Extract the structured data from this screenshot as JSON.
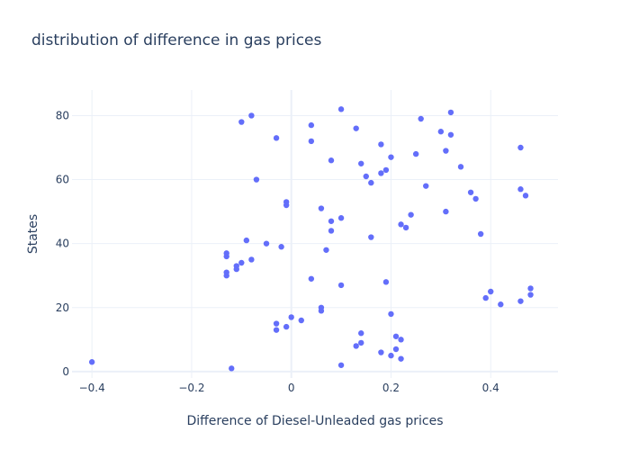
{
  "chart_data": {
    "type": "scatter",
    "title": "distribution of difference in gas prices",
    "xlabel": "Difference of Diesel-Unleaded gas prices",
    "ylabel": "States",
    "xlim": [
      -0.44,
      0.535
    ],
    "ylim": [
      -2,
      88
    ],
    "xticks": [
      -0.4,
      -0.2,
      0,
      0.2,
      0.4
    ],
    "xtick_labels": [
      "−0.4",
      "−0.2",
      "0",
      "0.2",
      "0.4"
    ],
    "yticks": [
      0,
      20,
      40,
      60,
      80
    ],
    "ytick_labels": [
      "0",
      "20",
      "40",
      "60",
      "80"
    ],
    "grid": true,
    "marker_color": "#636efa",
    "points": [
      [
        -0.4,
        3
      ],
      [
        -0.12,
        1
      ],
      [
        0.1,
        2
      ],
      [
        0.22,
        4
      ],
      [
        0.2,
        5
      ],
      [
        0.18,
        6
      ],
      [
        0.21,
        7
      ],
      [
        0.13,
        8
      ],
      [
        0.14,
        9
      ],
      [
        0.22,
        10
      ],
      [
        0.21,
        11
      ],
      [
        0.14,
        12
      ],
      [
        -0.03,
        13
      ],
      [
        -0.01,
        14
      ],
      [
        -0.03,
        15
      ],
      [
        0.02,
        16
      ],
      [
        0.0,
        17
      ],
      [
        0.2,
        18
      ],
      [
        0.06,
        19
      ],
      [
        0.06,
        20
      ],
      [
        0.42,
        21
      ],
      [
        0.46,
        22
      ],
      [
        0.39,
        23
      ],
      [
        0.48,
        24
      ],
      [
        0.4,
        25
      ],
      [
        0.48,
        26
      ],
      [
        0.1,
        27
      ],
      [
        0.19,
        28
      ],
      [
        0.04,
        29
      ],
      [
        -0.13,
        30
      ],
      [
        -0.13,
        31
      ],
      [
        -0.11,
        32
      ],
      [
        -0.11,
        33
      ],
      [
        -0.1,
        34
      ],
      [
        -0.08,
        35
      ],
      [
        -0.13,
        36
      ],
      [
        -0.13,
        37
      ],
      [
        0.07,
        38
      ],
      [
        -0.02,
        39
      ],
      [
        -0.05,
        40
      ],
      [
        -0.09,
        41
      ],
      [
        0.16,
        42
      ],
      [
        0.38,
        43
      ],
      [
        0.08,
        44
      ],
      [
        0.23,
        45
      ],
      [
        0.22,
        46
      ],
      [
        0.08,
        47
      ],
      [
        0.1,
        48
      ],
      [
        0.24,
        49
      ],
      [
        0.31,
        50
      ],
      [
        0.06,
        51
      ],
      [
        -0.01,
        52
      ],
      [
        -0.01,
        53
      ],
      [
        0.37,
        54
      ],
      [
        0.47,
        55
      ],
      [
        0.36,
        56
      ],
      [
        0.46,
        57
      ],
      [
        0.27,
        58
      ],
      [
        0.16,
        59
      ],
      [
        -0.07,
        60
      ],
      [
        0.15,
        61
      ],
      [
        0.18,
        62
      ],
      [
        0.19,
        63
      ],
      [
        0.34,
        64
      ],
      [
        0.14,
        65
      ],
      [
        0.08,
        66
      ],
      [
        0.2,
        67
      ],
      [
        0.25,
        68
      ],
      [
        0.31,
        69
      ],
      [
        0.46,
        70
      ],
      [
        0.18,
        71
      ],
      [
        0.04,
        72
      ],
      [
        -0.03,
        73
      ],
      [
        0.32,
        74
      ],
      [
        0.3,
        75
      ],
      [
        0.13,
        76
      ],
      [
        0.04,
        77
      ],
      [
        -0.1,
        78
      ],
      [
        0.26,
        79
      ],
      [
        -0.08,
        80
      ],
      [
        0.32,
        81
      ],
      [
        0.1,
        82
      ]
    ]
  }
}
